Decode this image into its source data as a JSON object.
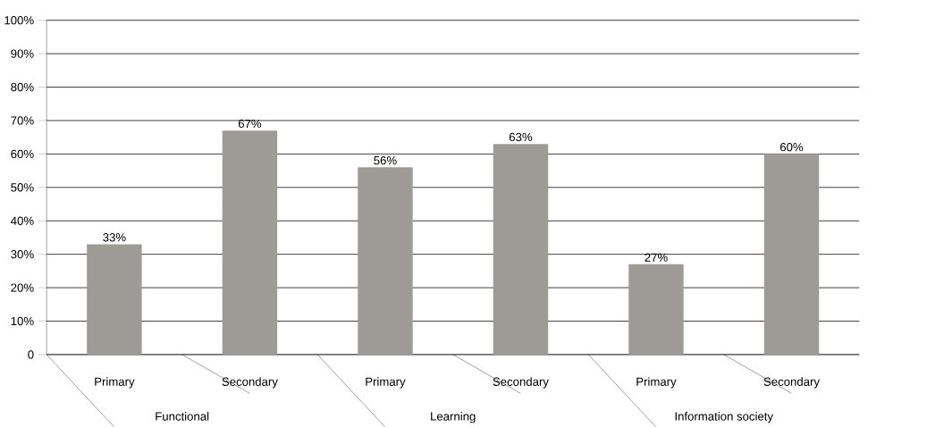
{
  "chart_data": {
    "type": "bar",
    "categories": [
      "Primary",
      "Secondary",
      "Primary",
      "Secondary",
      "Primary",
      "Secondary"
    ],
    "values": [
      33,
      67,
      56,
      63,
      27,
      60
    ],
    "value_labels": [
      "33%",
      "67%",
      "56%",
      "63%",
      "27%",
      "60%"
    ],
    "color": "#9e9a96",
    "ylim": [
      0,
      100
    ],
    "yticks": [
      0,
      {
        "value": 10,
        "label": "10%"
      },
      {
        "value": 20,
        "label": "20%"
      },
      {
        "value": 30,
        "label": "30%"
      },
      {
        "value": 40,
        "label": "40%"
      },
      {
        "value": 50,
        "label": "50%"
      },
      {
        "value": 60,
        "label": "60%"
      },
      {
        "value": 70,
        "label": "70%"
      },
      {
        "value": 80,
        "label": "80%"
      },
      {
        "value": 90,
        "label": "90%"
      },
      {
        "value": 100,
        "label": "100%"
      }
    ],
    "grid": "y",
    "annotations": [
      "Functional",
      "Learning",
      "Information society"
    ]
  }
}
